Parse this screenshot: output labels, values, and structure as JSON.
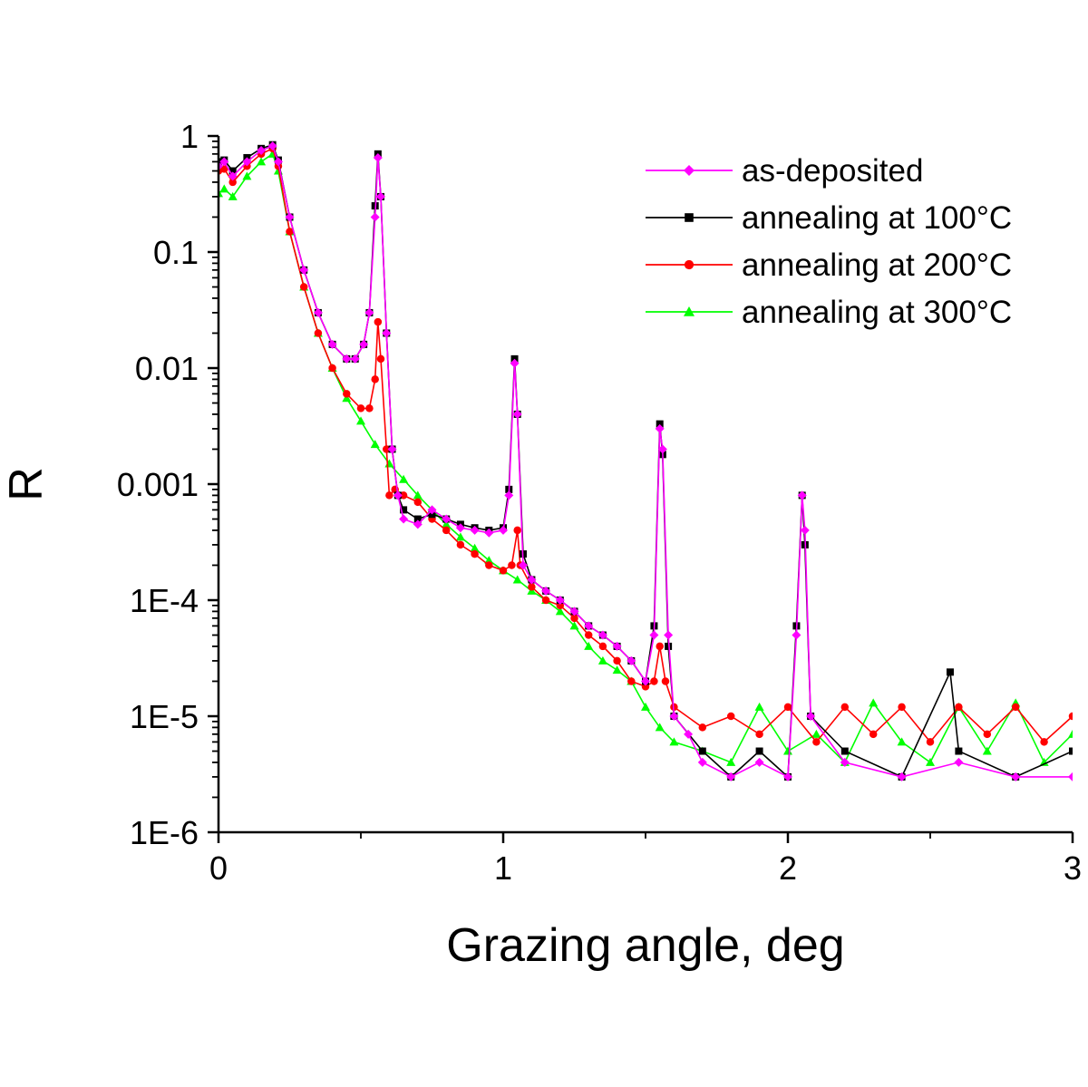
{
  "chart_data": {
    "type": "scatter",
    "title": "",
    "xlabel": "Grazing angle, deg",
    "ylabel": "R",
    "xlim": [
      0,
      3
    ],
    "ylim": [
      1e-06,
      1
    ],
    "yscale": "log",
    "x_ticks": [
      {
        "value": 0,
        "label": "0"
      },
      {
        "value": 1,
        "label": "1"
      },
      {
        "value": 2,
        "label": "2"
      },
      {
        "value": 3,
        "label": "3"
      }
    ],
    "y_ticks": [
      {
        "value": 1,
        "label": "1"
      },
      {
        "value": 0.1,
        "label": "0.1"
      },
      {
        "value": 0.01,
        "label": "0.01"
      },
      {
        "value": 0.001,
        "label": "0.001"
      },
      {
        "value": 0.0001,
        "label": "1E-4"
      },
      {
        "value": 1e-05,
        "label": "1E-5"
      },
      {
        "value": 1e-06,
        "label": "1E-6"
      }
    ],
    "grid": false,
    "legend_position": "top-right",
    "series": [
      {
        "name": "as-deposited",
        "color": "#ff00ff",
        "marker": "diamond",
        "points": [
          [
            0.0,
            0.55
          ],
          [
            0.02,
            0.6
          ],
          [
            0.05,
            0.45
          ],
          [
            0.1,
            0.6
          ],
          [
            0.15,
            0.75
          ],
          [
            0.19,
            0.82
          ],
          [
            0.21,
            0.6
          ],
          [
            0.25,
            0.2
          ],
          [
            0.3,
            0.07
          ],
          [
            0.35,
            0.03
          ],
          [
            0.4,
            0.016
          ],
          [
            0.45,
            0.012
          ],
          [
            0.48,
            0.012
          ],
          [
            0.51,
            0.016
          ],
          [
            0.53,
            0.03
          ],
          [
            0.55,
            0.2
          ],
          [
            0.56,
            0.65
          ],
          [
            0.57,
            0.3
          ],
          [
            0.59,
            0.02
          ],
          [
            0.61,
            0.002
          ],
          [
            0.63,
            0.0008
          ],
          [
            0.65,
            0.0005
          ],
          [
            0.7,
            0.00045
          ],
          [
            0.75,
            0.0006
          ],
          [
            0.8,
            0.0005
          ],
          [
            0.85,
            0.00042
          ],
          [
            0.9,
            0.0004
          ],
          [
            0.95,
            0.00038
          ],
          [
            1.0,
            0.0004
          ],
          [
            1.02,
            0.0008
          ],
          [
            1.04,
            0.011
          ],
          [
            1.05,
            0.004
          ],
          [
            1.07,
            0.0002
          ],
          [
            1.1,
            0.00015
          ],
          [
            1.15,
            0.00012
          ],
          [
            1.2,
            0.0001
          ],
          [
            1.25,
            8e-05
          ],
          [
            1.3,
            6e-05
          ],
          [
            1.35,
            5e-05
          ],
          [
            1.4,
            4e-05
          ],
          [
            1.45,
            3e-05
          ],
          [
            1.5,
            2e-05
          ],
          [
            1.53,
            5e-05
          ],
          [
            1.55,
            0.003
          ],
          [
            1.56,
            0.002
          ],
          [
            1.58,
            5e-05
          ],
          [
            1.6,
            1e-05
          ],
          [
            1.65,
            7e-06
          ],
          [
            1.7,
            4e-06
          ],
          [
            1.8,
            3e-06
          ],
          [
            1.9,
            4e-06
          ],
          [
            2.0,
            3e-06
          ],
          [
            2.03,
            5e-05
          ],
          [
            2.05,
            0.0008
          ],
          [
            2.06,
            0.0004
          ],
          [
            2.08,
            1e-05
          ],
          [
            2.2,
            4e-06
          ],
          [
            2.4,
            3e-06
          ],
          [
            2.6,
            4e-06
          ],
          [
            2.8,
            3e-06
          ],
          [
            3.0,
            3e-06
          ]
        ]
      },
      {
        "name": "annealing at 100°C",
        "color": "#000000",
        "marker": "square",
        "points": [
          [
            0.0,
            0.6
          ],
          [
            0.02,
            0.62
          ],
          [
            0.05,
            0.5
          ],
          [
            0.1,
            0.65
          ],
          [
            0.15,
            0.78
          ],
          [
            0.19,
            0.84
          ],
          [
            0.21,
            0.62
          ],
          [
            0.25,
            0.2
          ],
          [
            0.3,
            0.07
          ],
          [
            0.35,
            0.03
          ],
          [
            0.4,
            0.016
          ],
          [
            0.45,
            0.012
          ],
          [
            0.48,
            0.012
          ],
          [
            0.51,
            0.016
          ],
          [
            0.53,
            0.03
          ],
          [
            0.55,
            0.25
          ],
          [
            0.56,
            0.7
          ],
          [
            0.57,
            0.3
          ],
          [
            0.59,
            0.02
          ],
          [
            0.61,
            0.002
          ],
          [
            0.63,
            0.0008
          ],
          [
            0.65,
            0.0006
          ],
          [
            0.7,
            0.0005
          ],
          [
            0.75,
            0.00055
          ],
          [
            0.8,
            0.0005
          ],
          [
            0.85,
            0.00045
          ],
          [
            0.9,
            0.00042
          ],
          [
            0.95,
            0.0004
          ],
          [
            1.0,
            0.00042
          ],
          [
            1.02,
            0.0009
          ],
          [
            1.04,
            0.012
          ],
          [
            1.05,
            0.004
          ],
          [
            1.07,
            0.00025
          ],
          [
            1.1,
            0.00015
          ],
          [
            1.15,
            0.00012
          ],
          [
            1.2,
            0.0001
          ],
          [
            1.25,
            8e-05
          ],
          [
            1.3,
            6e-05
          ],
          [
            1.35,
            5e-05
          ],
          [
            1.4,
            4e-05
          ],
          [
            1.45,
            3e-05
          ],
          [
            1.5,
            2e-05
          ],
          [
            1.53,
            6e-05
          ],
          [
            1.55,
            0.0033
          ],
          [
            1.56,
            0.0018
          ],
          [
            1.58,
            4e-05
          ],
          [
            1.6,
            1e-05
          ],
          [
            1.7,
            5e-06
          ],
          [
            1.8,
            3e-06
          ],
          [
            1.9,
            5e-06
          ],
          [
            2.0,
            3e-06
          ],
          [
            2.03,
            6e-05
          ],
          [
            2.05,
            0.0008
          ],
          [
            2.06,
            0.0003
          ],
          [
            2.08,
            1e-05
          ],
          [
            2.2,
            5e-06
          ],
          [
            2.4,
            3e-06
          ],
          [
            2.57,
            2.4e-05
          ],
          [
            2.6,
            5e-06
          ],
          [
            2.8,
            3e-06
          ],
          [
            3.0,
            5e-06
          ]
        ]
      },
      {
        "name": "annealing at 200°C",
        "color": "#ff0000",
        "marker": "circle",
        "points": [
          [
            0.0,
            0.5
          ],
          [
            0.02,
            0.52
          ],
          [
            0.05,
            0.4
          ],
          [
            0.1,
            0.55
          ],
          [
            0.15,
            0.7
          ],
          [
            0.19,
            0.78
          ],
          [
            0.21,
            0.55
          ],
          [
            0.25,
            0.15
          ],
          [
            0.3,
            0.05
          ],
          [
            0.35,
            0.02
          ],
          [
            0.4,
            0.01
          ],
          [
            0.45,
            0.006
          ],
          [
            0.5,
            0.0045
          ],
          [
            0.53,
            0.0045
          ],
          [
            0.55,
            0.008
          ],
          [
            0.56,
            0.025
          ],
          [
            0.57,
            0.012
          ],
          [
            0.59,
            0.002
          ],
          [
            0.6,
            0.0008
          ],
          [
            0.62,
            0.0009
          ],
          [
            0.65,
            0.0008
          ],
          [
            0.7,
            0.0007
          ],
          [
            0.75,
            0.0005
          ],
          [
            0.8,
            0.0004
          ],
          [
            0.85,
            0.0003
          ],
          [
            0.9,
            0.00025
          ],
          [
            0.95,
            0.0002
          ],
          [
            1.0,
            0.00018
          ],
          [
            1.03,
            0.0002
          ],
          [
            1.05,
            0.0004
          ],
          [
            1.06,
            0.0002
          ],
          [
            1.1,
            0.00013
          ],
          [
            1.15,
            0.0001
          ],
          [
            1.2,
            9e-05
          ],
          [
            1.25,
            7e-05
          ],
          [
            1.3,
            5e-05
          ],
          [
            1.35,
            4e-05
          ],
          [
            1.4,
            3e-05
          ],
          [
            1.45,
            2e-05
          ],
          [
            1.5,
            1.8e-05
          ],
          [
            1.53,
            2e-05
          ],
          [
            1.55,
            4e-05
          ],
          [
            1.57,
            2e-05
          ],
          [
            1.6,
            1.2e-05
          ],
          [
            1.7,
            8e-06
          ],
          [
            1.8,
            1e-05
          ],
          [
            1.9,
            7e-06
          ],
          [
            2.0,
            1.2e-05
          ],
          [
            2.1,
            6e-06
          ],
          [
            2.2,
            1.2e-05
          ],
          [
            2.3,
            7e-06
          ],
          [
            2.4,
            1.2e-05
          ],
          [
            2.5,
            6e-06
          ],
          [
            2.6,
            1.2e-05
          ],
          [
            2.7,
            7e-06
          ],
          [
            2.8,
            1.2e-05
          ],
          [
            2.9,
            6e-06
          ],
          [
            3.0,
            1e-05
          ]
        ]
      },
      {
        "name": "annealing at 300°C",
        "color": "#00ff00",
        "marker": "triangle",
        "points": [
          [
            0.0,
            0.32
          ],
          [
            0.02,
            0.35
          ],
          [
            0.05,
            0.3
          ],
          [
            0.1,
            0.45
          ],
          [
            0.15,
            0.6
          ],
          [
            0.19,
            0.7
          ],
          [
            0.21,
            0.5
          ],
          [
            0.25,
            0.15
          ],
          [
            0.3,
            0.05
          ],
          [
            0.35,
            0.02
          ],
          [
            0.4,
            0.01
          ],
          [
            0.45,
            0.0055
          ],
          [
            0.5,
            0.0035
          ],
          [
            0.55,
            0.0022
          ],
          [
            0.6,
            0.0015
          ],
          [
            0.65,
            0.0011
          ],
          [
            0.7,
            0.0008
          ],
          [
            0.75,
            0.0006
          ],
          [
            0.8,
            0.00045
          ],
          [
            0.85,
            0.00035
          ],
          [
            0.9,
            0.00028
          ],
          [
            0.95,
            0.00022
          ],
          [
            1.0,
            0.00018
          ],
          [
            1.05,
            0.00015
          ],
          [
            1.1,
            0.00012
          ],
          [
            1.15,
            0.0001
          ],
          [
            1.2,
            8e-05
          ],
          [
            1.25,
            6e-05
          ],
          [
            1.3,
            4e-05
          ],
          [
            1.35,
            3e-05
          ],
          [
            1.4,
            2.5e-05
          ],
          [
            1.45,
            2e-05
          ],
          [
            1.5,
            1.2e-05
          ],
          [
            1.55,
            8e-06
          ],
          [
            1.6,
            6e-06
          ],
          [
            1.7,
            5e-06
          ],
          [
            1.8,
            4e-06
          ],
          [
            1.9,
            1.2e-05
          ],
          [
            2.0,
            5e-06
          ],
          [
            2.1,
            7e-06
          ],
          [
            2.2,
            4e-06
          ],
          [
            2.3,
            1.3e-05
          ],
          [
            2.4,
            6e-06
          ],
          [
            2.5,
            4e-06
          ],
          [
            2.6,
            1.2e-05
          ],
          [
            2.7,
            5e-06
          ],
          [
            2.8,
            1.3e-05
          ],
          [
            2.9,
            4e-06
          ],
          [
            3.0,
            7e-06
          ]
        ]
      }
    ]
  }
}
